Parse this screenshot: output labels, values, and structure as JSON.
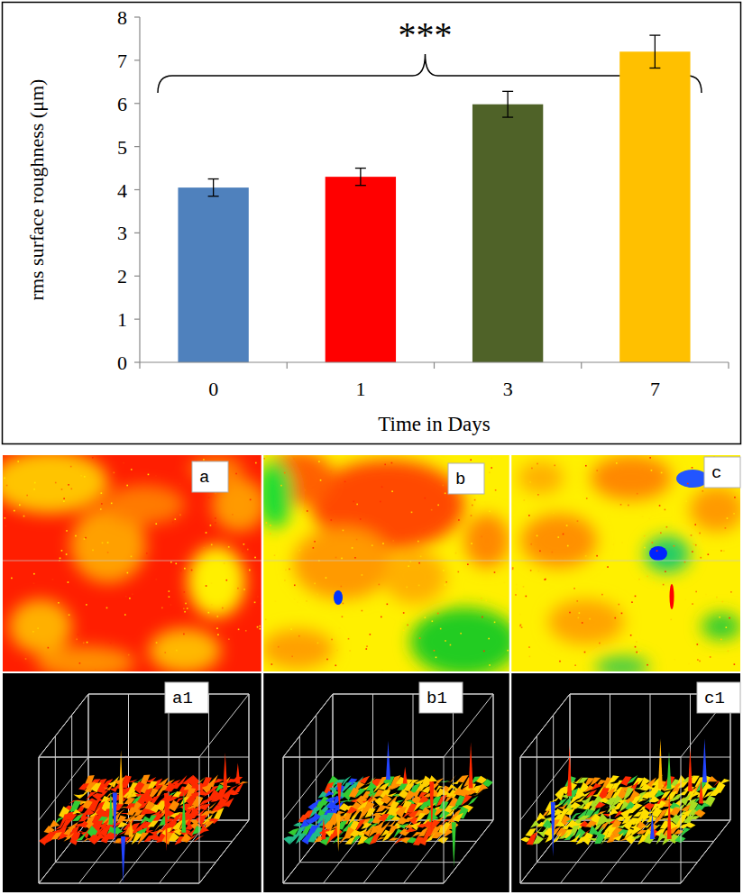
{
  "chart_data": {
    "type": "bar",
    "categories": [
      "0",
      "1",
      "3",
      "7"
    ],
    "values": [
      4.05,
      4.3,
      5.98,
      7.2
    ],
    "errors": [
      0.2,
      0.2,
      0.3,
      0.38
    ],
    "colors": [
      "#4f81bd",
      "#ff0000",
      "#4f6228",
      "#ffc000"
    ],
    "x_label": "Time in Days",
    "y_label": "rms surface roughness (μm)",
    "annotation": "***",
    "ylim": [
      0,
      8
    ],
    "yticks": [
      0,
      1,
      2,
      3,
      4,
      5,
      6,
      7,
      8
    ],
    "grid": false
  },
  "images": {
    "maps": [
      "a",
      "b",
      "c"
    ],
    "surfaces": [
      "a1",
      "b1",
      "c1"
    ]
  }
}
